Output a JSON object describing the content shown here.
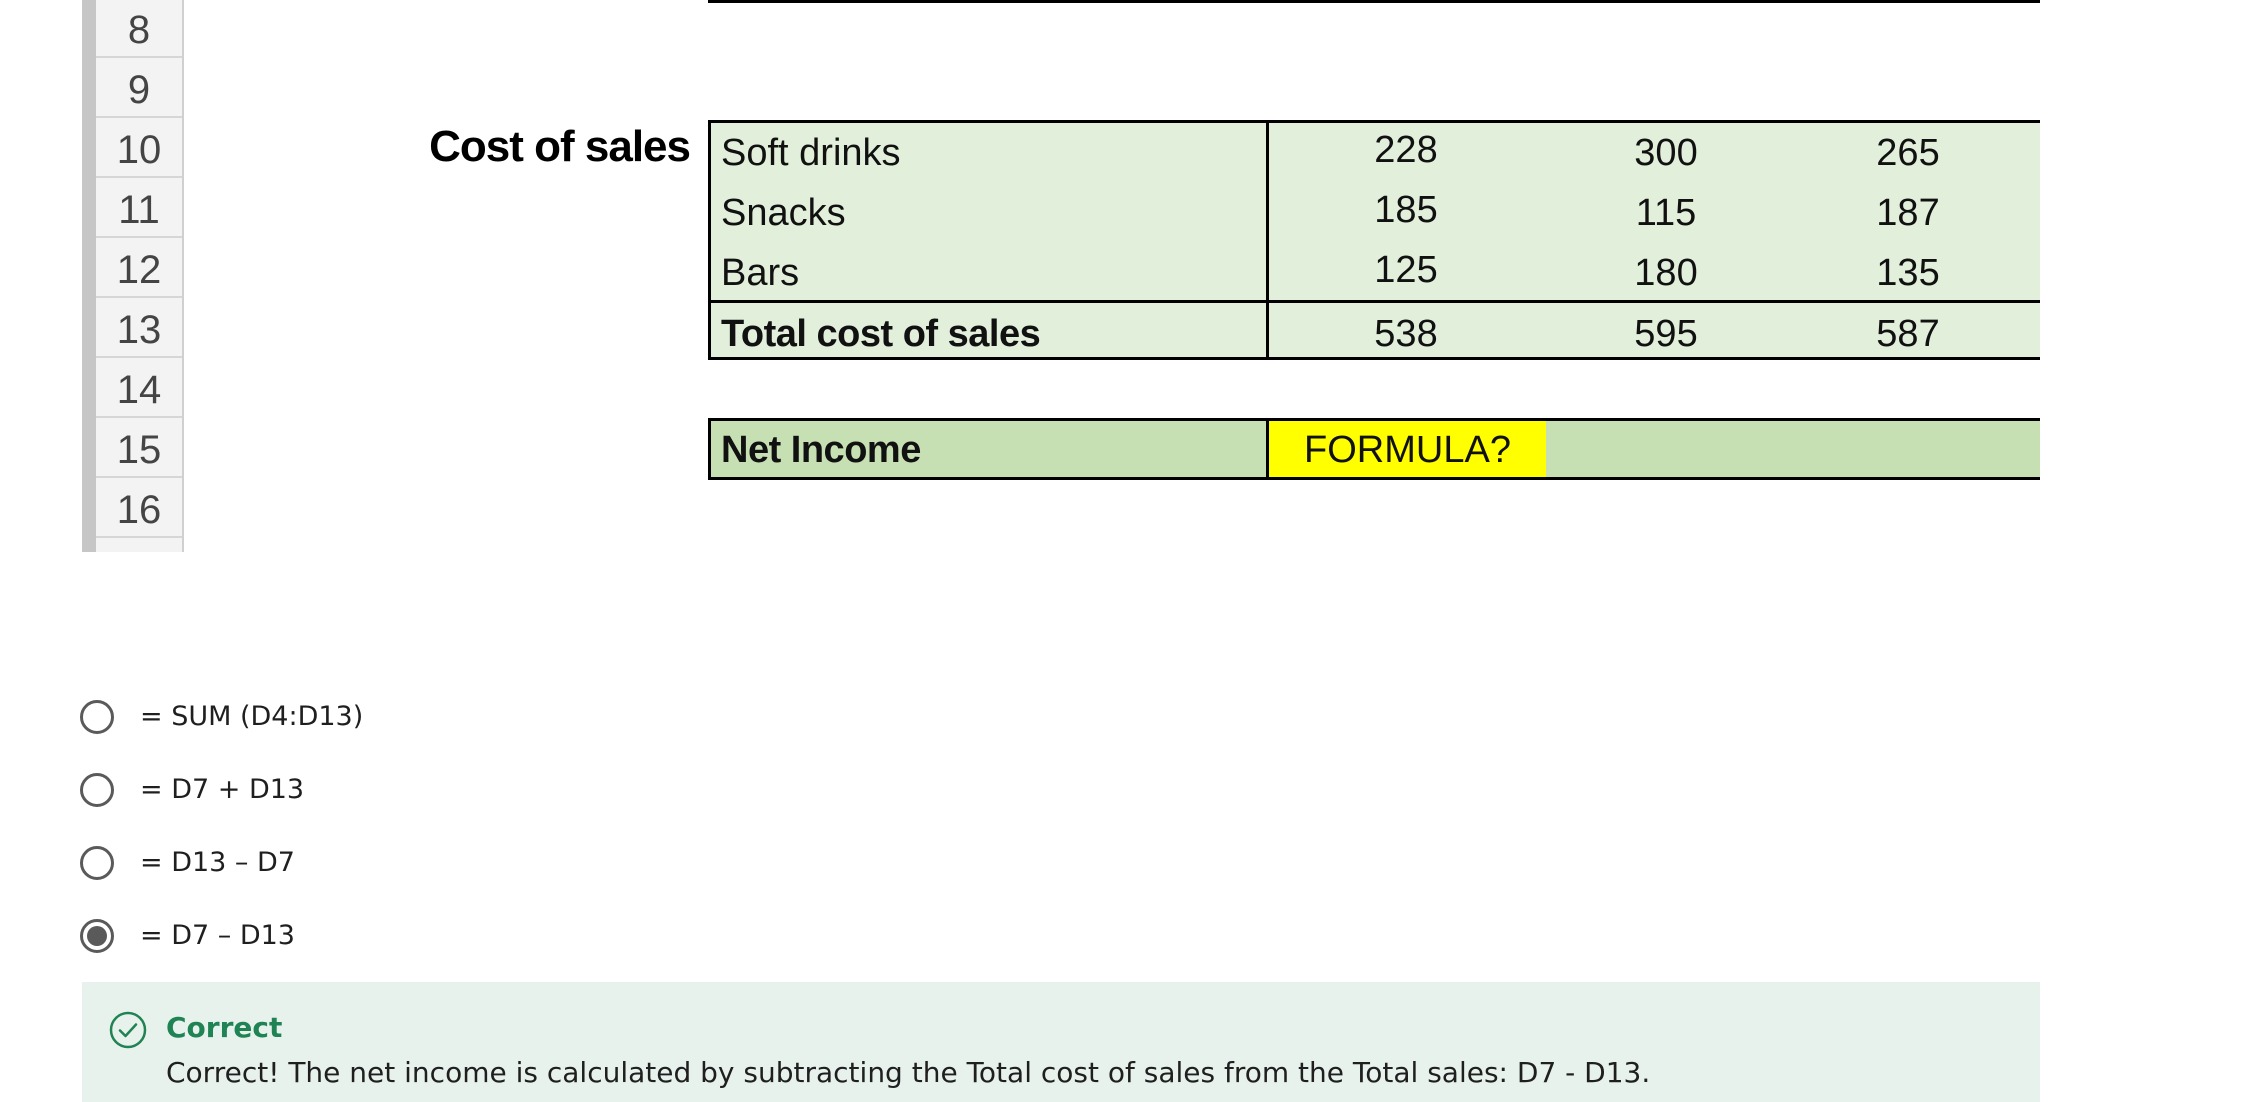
{
  "spreadsheet": {
    "row_numbers": [
      "8",
      "9",
      "10",
      "11",
      "12",
      "13",
      "14",
      "15",
      "16"
    ],
    "section_label": "Cost of sales",
    "cost_rows": [
      {
        "name": "Soft drinks",
        "values": [
          "228",
          "300",
          "265"
        ]
      },
      {
        "name": "Snacks",
        "values": [
          "185",
          "115",
          "187"
        ]
      },
      {
        "name": "Bars",
        "values": [
          "125",
          "180",
          "135"
        ]
      }
    ],
    "total_row": {
      "name": "Total cost of sales",
      "values": [
        "538",
        "595",
        "587"
      ]
    },
    "net_income": {
      "label": "Net Income",
      "formula_placeholder": "FORMULA?"
    },
    "colors": {
      "table_fill": "#e2efdb",
      "net_income_fill": "#c6e0b4",
      "formula_highlight": "#ffff00"
    }
  },
  "question": {
    "options": [
      {
        "label": "= SUM (D4:D13)",
        "selected": false
      },
      {
        "label": "= D7 + D13",
        "selected": false
      },
      {
        "label": "= D13 – D7",
        "selected": false
      },
      {
        "label": "= D7 – D13",
        "selected": true
      }
    ]
  },
  "feedback": {
    "icon": "check-circle-icon",
    "status": "Correct",
    "message": "Correct! The net income is calculated by subtracting the Total cost of sales from the Total sales: D7 - D13.",
    "color": "#1f8354"
  }
}
